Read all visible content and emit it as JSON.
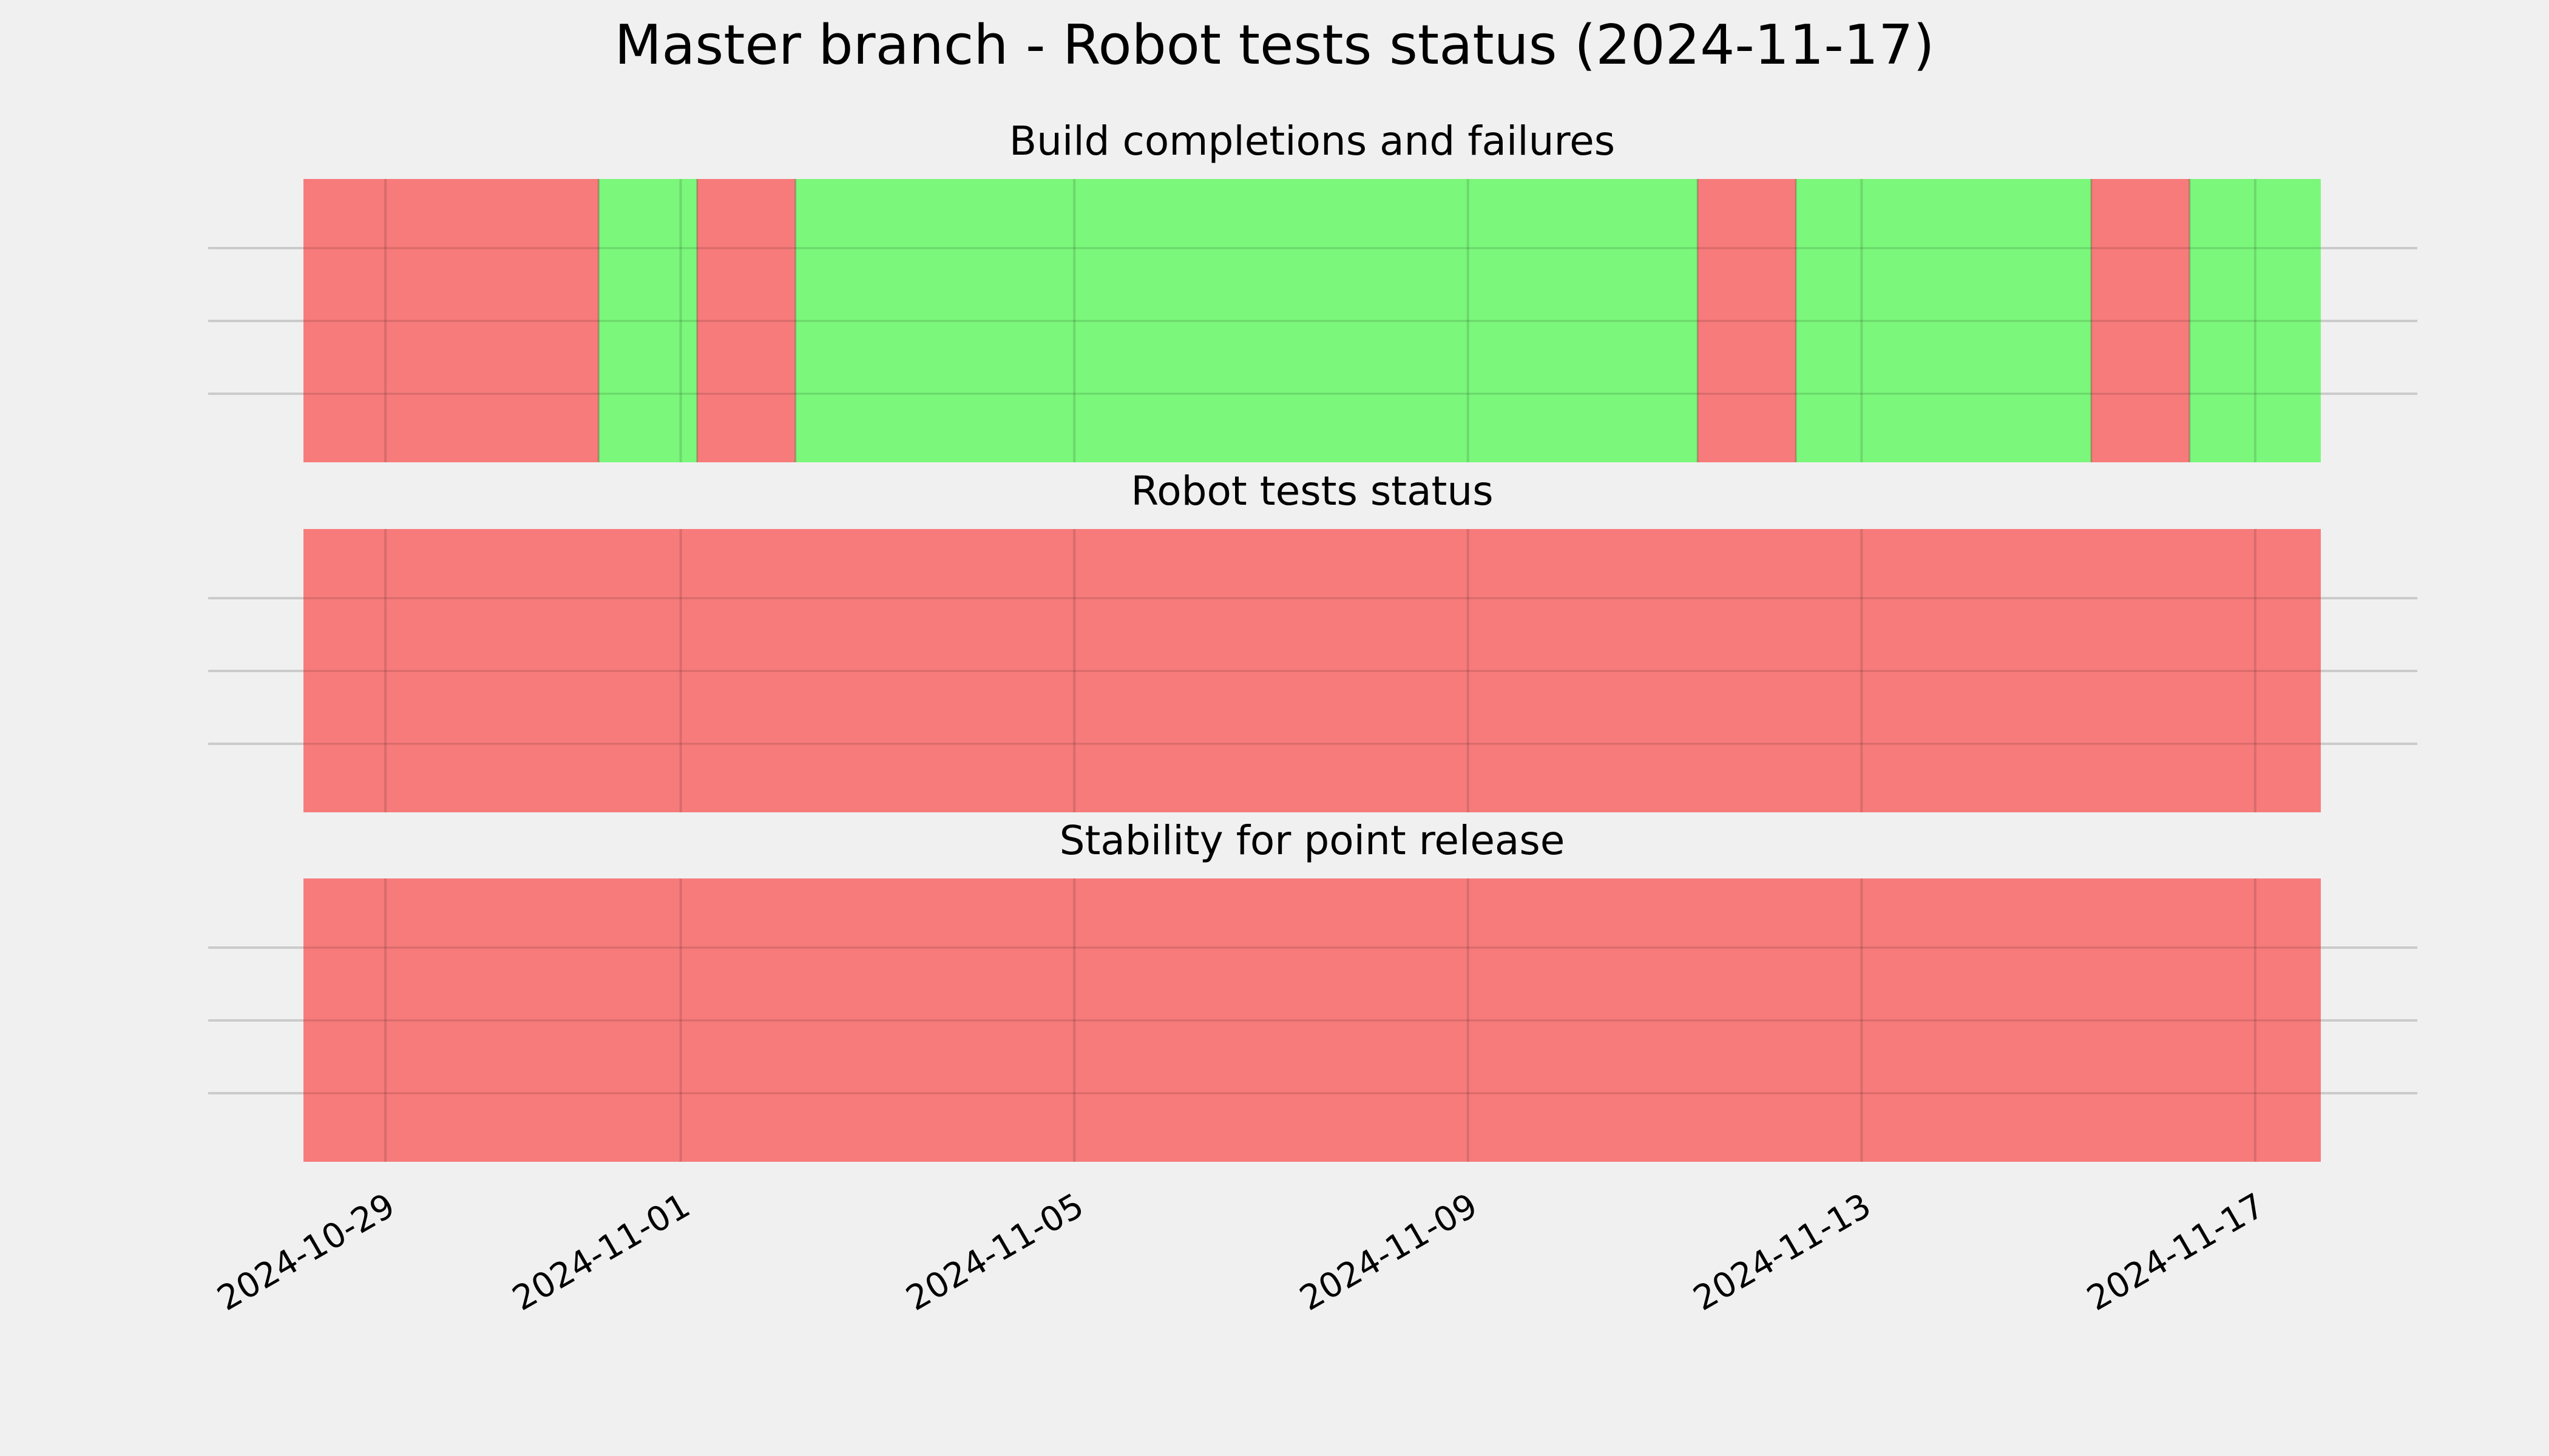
{
  "colors": {
    "background": "#f0f0f0",
    "pass": "#77f777",
    "fail": "#f77777",
    "grid": "#cbcbcb",
    "tick_line": "#d06060"
  },
  "chart_data": {
    "type": "timeline",
    "title": "Master branch - Robot tests status (2024-11-17)",
    "x_range": [
      "2024-10-28 04:00",
      "2024-11-17 16:00"
    ],
    "x_ticks": [
      "2024-10-29",
      "2024-11-01",
      "2024-11-05",
      "2024-11-09",
      "2024-11-13",
      "2024-11-17"
    ],
    "grid": true,
    "panels": [
      {
        "title": "Build completions and failures",
        "segments": [
          {
            "start": "2024-10-28 04:00",
            "end": "2024-10-31 04:00",
            "status": "fail"
          },
          {
            "start": "2024-10-31 04:00",
            "end": "2024-11-01 04:00",
            "status": "pass"
          },
          {
            "start": "2024-11-01 04:00",
            "end": "2024-11-02 04:00",
            "status": "fail"
          },
          {
            "start": "2024-11-02 04:00",
            "end": "2024-11-11 08:00",
            "status": "pass"
          },
          {
            "start": "2024-11-11 08:00",
            "end": "2024-11-12 08:00",
            "status": "fail"
          },
          {
            "start": "2024-11-12 08:00",
            "end": "2024-11-15 08:00",
            "status": "pass"
          },
          {
            "start": "2024-11-15 08:00",
            "end": "2024-11-16 08:00",
            "status": "fail"
          },
          {
            "start": "2024-11-16 08:00",
            "end": "2024-11-17 16:00",
            "status": "pass"
          }
        ]
      },
      {
        "title": "Robot tests status",
        "segments": [
          {
            "start": "2024-10-28 04:00",
            "end": "2024-11-17 16:00",
            "status": "fail"
          }
        ]
      },
      {
        "title": "Stability for point release",
        "segments": [
          {
            "start": "2024-10-28 04:00",
            "end": "2024-11-17 16:00",
            "status": "fail"
          }
        ]
      }
    ]
  }
}
